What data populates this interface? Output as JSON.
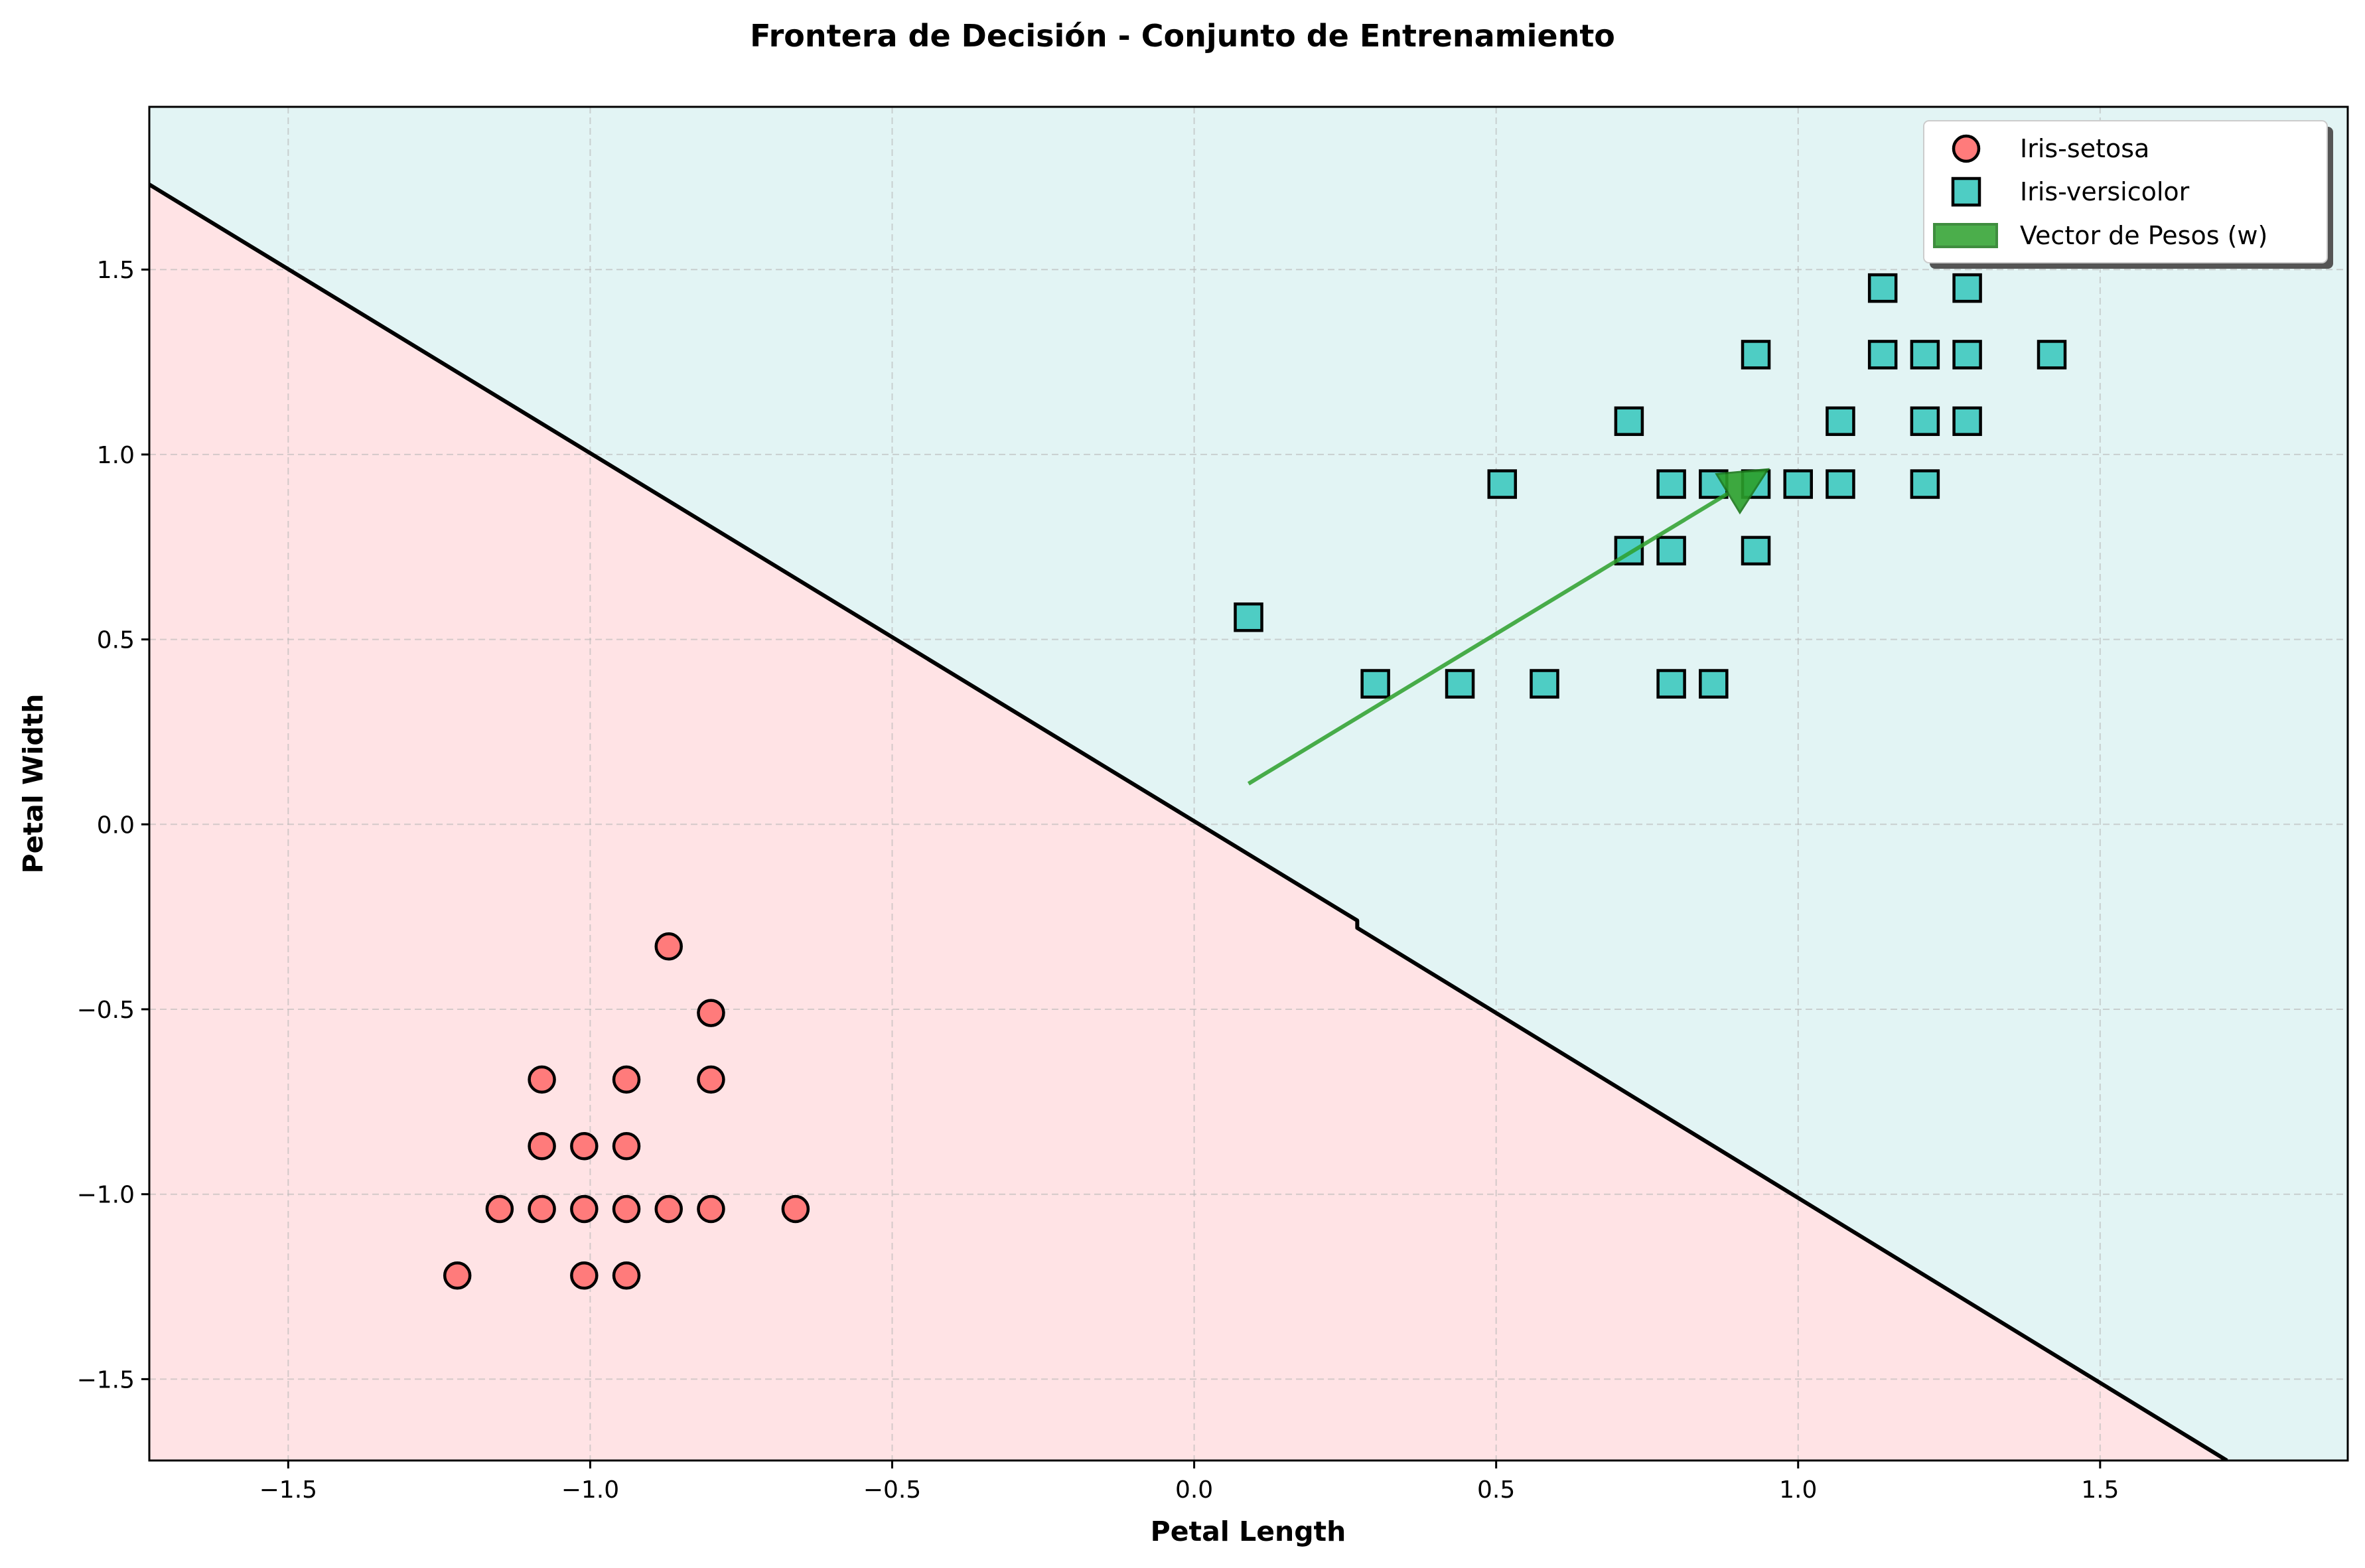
{
  "chart_data": {
    "type": "scatter",
    "title": "Frontera de Decisión - Conjunto de Entrenamiento",
    "xlabel": "Petal Length",
    "ylabel": "Petal Width",
    "xlim": [
      -1.73,
      1.91
    ],
    "ylim": [
      -1.72,
      1.94
    ],
    "xticks": [
      -1.5,
      -1.0,
      -0.5,
      0.0,
      0.5,
      1.0,
      1.5
    ],
    "xtick_labels": [
      "−1.5",
      "−1.0",
      "−0.5",
      "0.0",
      "0.5",
      "1.0",
      "1.5"
    ],
    "yticks": [
      -1.5,
      -1.0,
      -0.5,
      0.0,
      0.5,
      1.0,
      1.5
    ],
    "ytick_labels": [
      "−1.5",
      "−1.0",
      "−0.5",
      "0.0",
      "0.5",
      "1.0",
      "1.5"
    ],
    "grid": true,
    "legend_position": "top-right",
    "colors": {
      "setosa": "#ff7b7b",
      "versicolor": "#4ecdc4",
      "region_setosa": "#ffe3e5",
      "region_versicolor": "#e2f4f4",
      "vector": "#2ca02c",
      "boundary": "#000000"
    },
    "decision_boundary": {
      "points": [
        [
          -1.73,
          1.73
        ],
        [
          0.27,
          -0.26
        ],
        [
          0.27,
          -0.28
        ],
        [
          1.71,
          -1.72
        ]
      ]
    },
    "weight_vector": {
      "name": "Vector de Pesos (w)",
      "start": [
        0.09,
        0.11
      ],
      "end": [
        0.95,
        0.96
      ]
    },
    "series": [
      {
        "name": "Iris-setosa",
        "marker": "circle",
        "points": [
          [
            -0.87,
            -0.33
          ],
          [
            -0.8,
            -0.51
          ],
          [
            -1.08,
            -0.69
          ],
          [
            -0.94,
            -0.69
          ],
          [
            -0.8,
            -0.69
          ],
          [
            -1.08,
            -0.87
          ],
          [
            -1.01,
            -0.87
          ],
          [
            -0.94,
            -0.87
          ],
          [
            -1.15,
            -1.04
          ],
          [
            -1.08,
            -1.04
          ],
          [
            -1.01,
            -1.04
          ],
          [
            -0.94,
            -1.04
          ],
          [
            -0.87,
            -1.04
          ],
          [
            -0.8,
            -1.04
          ],
          [
            -0.66,
            -1.04
          ],
          [
            -1.22,
            -1.22
          ],
          [
            -1.01,
            -1.22
          ],
          [
            -0.94,
            -1.22
          ]
        ]
      },
      {
        "name": "Iris-versicolor",
        "marker": "square",
        "points": [
          [
            1.14,
            1.45
          ],
          [
            1.28,
            1.45
          ],
          [
            0.93,
            1.27
          ],
          [
            1.14,
            1.27
          ],
          [
            1.21,
            1.27
          ],
          [
            1.28,
            1.27
          ],
          [
            1.42,
            1.27
          ],
          [
            0.72,
            1.09
          ],
          [
            1.07,
            1.09
          ],
          [
            1.21,
            1.09
          ],
          [
            1.28,
            1.09
          ],
          [
            0.51,
            0.92
          ],
          [
            0.79,
            0.92
          ],
          [
            0.86,
            0.92
          ],
          [
            0.93,
            0.92
          ],
          [
            1.0,
            0.92
          ],
          [
            1.07,
            0.92
          ],
          [
            1.21,
            0.92
          ],
          [
            0.72,
            0.74
          ],
          [
            0.79,
            0.74
          ],
          [
            0.93,
            0.74
          ],
          [
            0.09,
            0.56
          ],
          [
            0.3,
            0.38
          ],
          [
            0.44,
            0.38
          ],
          [
            0.58,
            0.38
          ],
          [
            0.79,
            0.38
          ],
          [
            0.86,
            0.38
          ]
        ]
      }
    ]
  }
}
